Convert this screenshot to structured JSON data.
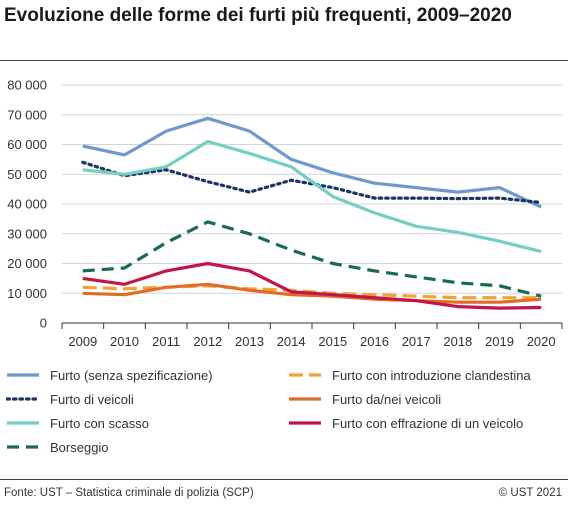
{
  "title": "Evoluzione delle forme dei furti più frequenti, 2009–2020",
  "source": "Fonte: UST – Statistica criminale di polizia (SCP)",
  "copyright": "© UST 2021",
  "chart_data": {
    "type": "line",
    "title": "Evoluzione delle forme dei furti più frequenti, 2009–2020",
    "xlabel": "",
    "ylabel": "",
    "ylim": [
      0,
      80000
    ],
    "yticks": [
      0,
      10000,
      20000,
      30000,
      40000,
      50000,
      60000,
      70000,
      80000
    ],
    "ytick_labels": [
      "0",
      "10 000",
      "20 000",
      "30 000",
      "40 000",
      "50 000",
      "60 000",
      "70 000",
      "80 000"
    ],
    "grid": true,
    "legend_position": "bottom",
    "categories": [
      "2009",
      "2010",
      "2011",
      "2012",
      "2013",
      "2014",
      "2015",
      "2016",
      "2017",
      "2018",
      "2019",
      "2020"
    ],
    "series": [
      {
        "name": "Furto (senza spezificazione)",
        "color": "#6f98cf",
        "dash": "solid",
        "values": [
          59500,
          56500,
          64500,
          68800,
          64500,
          55000,
          50500,
          47000,
          45500,
          44000,
          45500,
          39000
        ]
      },
      {
        "name": "Furto con introduzione clandestina",
        "color": "#f0a431",
        "dash": "long-dash",
        "values": [
          12000,
          11500,
          12000,
          12500,
          11500,
          11000,
          10000,
          9500,
          9000,
          8500,
          8500,
          8500
        ]
      },
      {
        "name": "Furto di veicoli",
        "color": "#1c3565",
        "dash": "dotted",
        "values": [
          54000,
          49500,
          51500,
          47500,
          44000,
          48000,
          45500,
          42000,
          42000,
          41800,
          42000,
          40500
        ]
      },
      {
        "name": "Furto da/nei veicoli",
        "color": "#e36b2a",
        "dash": "solid",
        "values": [
          10000,
          9500,
          12000,
          13000,
          11000,
          9500,
          9000,
          8000,
          7500,
          7000,
          7000,
          8000
        ]
      },
      {
        "name": "Furto con scasso",
        "color": "#75cec0",
        "dash": "solid",
        "values": [
          51500,
          50000,
          52500,
          61000,
          57000,
          52500,
          42500,
          37000,
          32500,
          30500,
          27500,
          24000
        ]
      },
      {
        "name": "Furto con effrazione di un veicolo",
        "color": "#c2154a",
        "dash": "solid",
        "values": [
          15000,
          13000,
          17500,
          20000,
          17500,
          10500,
          9500,
          8500,
          7500,
          5500,
          5000,
          5200
        ]
      },
      {
        "name": "Borseggio",
        "color": "#17695a",
        "dash": "dashed",
        "values": [
          17500,
          18500,
          27000,
          34000,
          30000,
          24500,
          20000,
          17500,
          15500,
          13500,
          12500,
          9000
        ]
      }
    ]
  }
}
